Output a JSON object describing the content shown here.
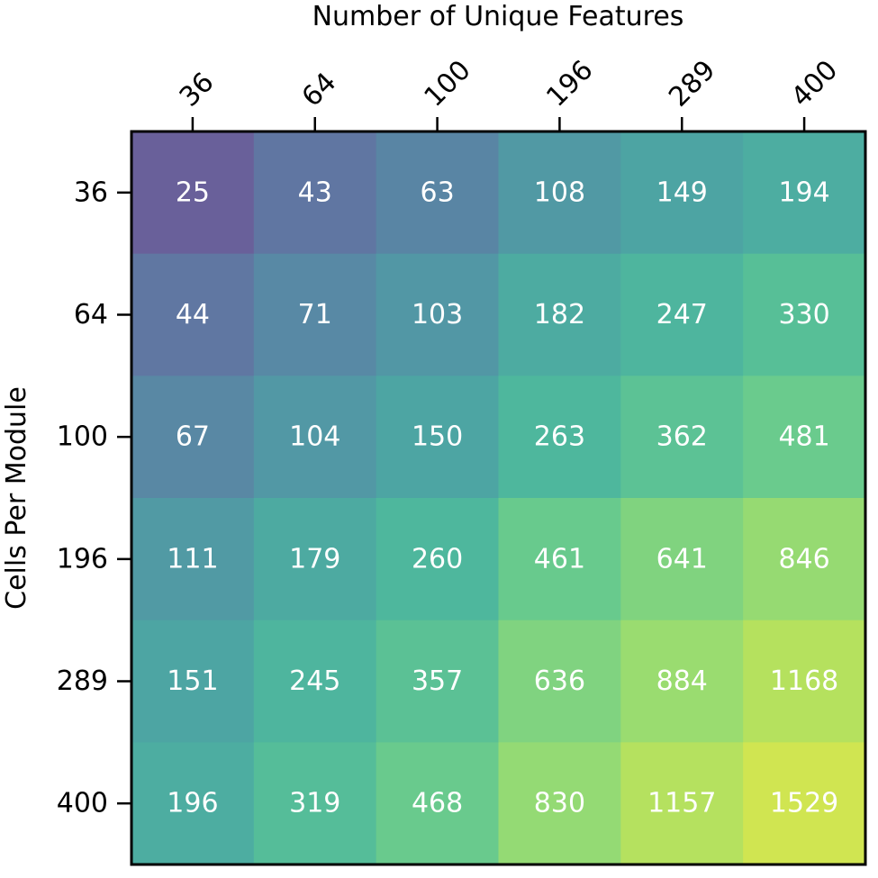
{
  "chart_data": {
    "type": "heatmap",
    "title": "",
    "xlabel": "Number of Unique Features",
    "ylabel": "Cells Per Module",
    "x_categories": [
      "36",
      "64",
      "100",
      "196",
      "289",
      "400"
    ],
    "y_categories": [
      "36",
      "64",
      "100",
      "196",
      "289",
      "400"
    ],
    "x_axis_position": "top",
    "x_tick_rotation_deg": -45,
    "values": [
      [
        25,
        43,
        63,
        108,
        149,
        194
      ],
      [
        44,
        71,
        103,
        182,
        247,
        330
      ],
      [
        67,
        104,
        150,
        263,
        362,
        481
      ],
      [
        111,
        179,
        260,
        461,
        641,
        846
      ],
      [
        151,
        245,
        357,
        636,
        884,
        1168
      ],
      [
        196,
        319,
        468,
        830,
        1157,
        1529
      ]
    ],
    "colormap": "viridis",
    "color_scale": "log",
    "color_range": [
      10,
      2500
    ],
    "cell_text_color": "#ffffff",
    "grid": false,
    "legend": "none"
  }
}
